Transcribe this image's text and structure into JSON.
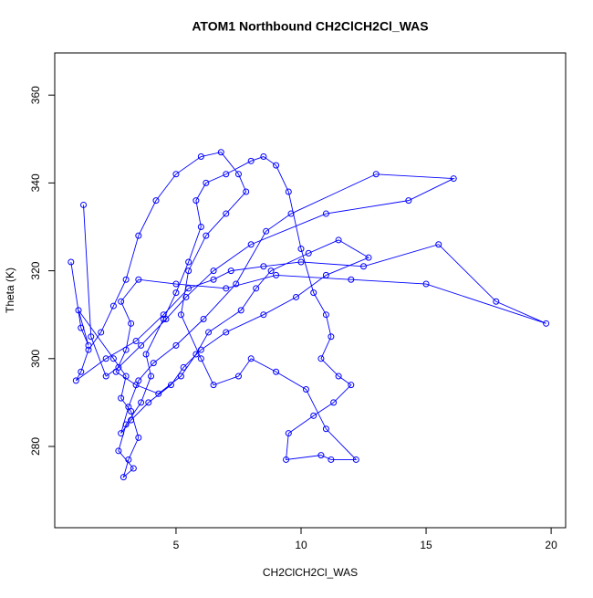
{
  "chart_data": {
    "type": "line",
    "title": "ATOM1 Northbound CH2ClCH2Cl_WAS",
    "xlabel": "CH2ClCH2Cl_WAS",
    "ylabel": "Theta (K)",
    "xlim": [
      0.15,
      20.58
    ],
    "ylim": [
      261.5,
      369.6
    ],
    "xticks": [
      5,
      10,
      15,
      20
    ],
    "yticks": [
      280,
      300,
      320,
      340,
      360
    ],
    "grid": false,
    "markers": true,
    "series": [
      {
        "color": "#0000ff",
        "x": [
          0.8,
          1.2,
          1.5,
          1.1,
          2.5,
          3.0,
          2.8,
          3.2,
          3.5,
          3.1,
          2.9,
          3.3,
          2.7,
          3.0,
          3.6,
          4.0,
          3.8,
          4.5,
          5.0,
          5.5,
          6.0,
          5.8,
          6.2,
          7.0,
          8.0,
          8.5,
          9.0,
          9.5,
          10.0,
          10.5,
          11.0,
          11.2,
          10.8,
          11.5,
          12.0,
          11.3,
          10.5,
          9.5,
          9.4,
          10.8,
          11.2,
          12.2,
          11.0,
          10.2,
          9.0,
          8.0,
          7.5,
          6.5,
          6.0,
          5.2,
          5.5,
          6.2,
          7.0,
          7.8,
          7.5,
          6.8,
          6.0,
          5.0,
          4.2,
          3.5,
          3.0,
          2.5,
          2.0,
          1.5,
          1.2,
          1.0,
          2.2,
          3.4,
          4.5,
          5.5,
          6.5,
          7.2,
          8.5,
          10.0,
          12.5,
          15.5,
          17.8,
          19.8,
          15.0,
          12.0,
          9.0,
          7.0,
          5.0,
          3.5,
          2.8,
          3.2,
          3.0,
          2.6,
          3.4,
          4.3,
          5.2,
          5.8,
          6.3,
          7.6,
          8.2,
          8.8,
          10.3,
          11.5,
          12.7,
          11.0,
          9.8,
          8.5,
          7.0,
          6.0,
          5.3,
          4.8,
          3.9,
          3.2,
          2.8,
          3.1,
          3.5,
          4.1,
          5.0,
          6.1,
          7.4,
          8.6,
          9.6,
          13.0,
          16.1,
          14.3,
          11.0,
          8.0,
          6.5,
          5.4,
          4.6,
          3.6,
          2.7,
          2.2,
          1.6,
          1.3
        ],
        "values": [
          322,
          307,
          303,
          311,
          300,
          296,
          291,
          288,
          282,
          277,
          273,
          275,
          279,
          285,
          290,
          296,
          301,
          309,
          315,
          322,
          330,
          336,
          340,
          342,
          345,
          346,
          344,
          338,
          325,
          315,
          310,
          305,
          300,
          296,
          294,
          290,
          287,
          283,
          277,
          278,
          277,
          277,
          284,
          293,
          297,
          300,
          296,
          294,
          300,
          310,
          320,
          328,
          333,
          338,
          342,
          347,
          346,
          342,
          336,
          328,
          318,
          312,
          306,
          302,
          297,
          295,
          300,
          304,
          310,
          316,
          318,
          320,
          321,
          322,
          321,
          326,
          313,
          308,
          317,
          318,
          319,
          316,
          317,
          318,
          313,
          308,
          302,
          297,
          294,
          292,
          296,
          301,
          306,
          311,
          316,
          320,
          324,
          327,
          323,
          319,
          314,
          310,
          306,
          302,
          298,
          294,
          290,
          286,
          283,
          289,
          295,
          299,
          303,
          309,
          317,
          329,
          333,
          342,
          341,
          336,
          333,
          326,
          320,
          314,
          309,
          303,
          298,
          296,
          305,
          335
        ]
      }
    ]
  }
}
